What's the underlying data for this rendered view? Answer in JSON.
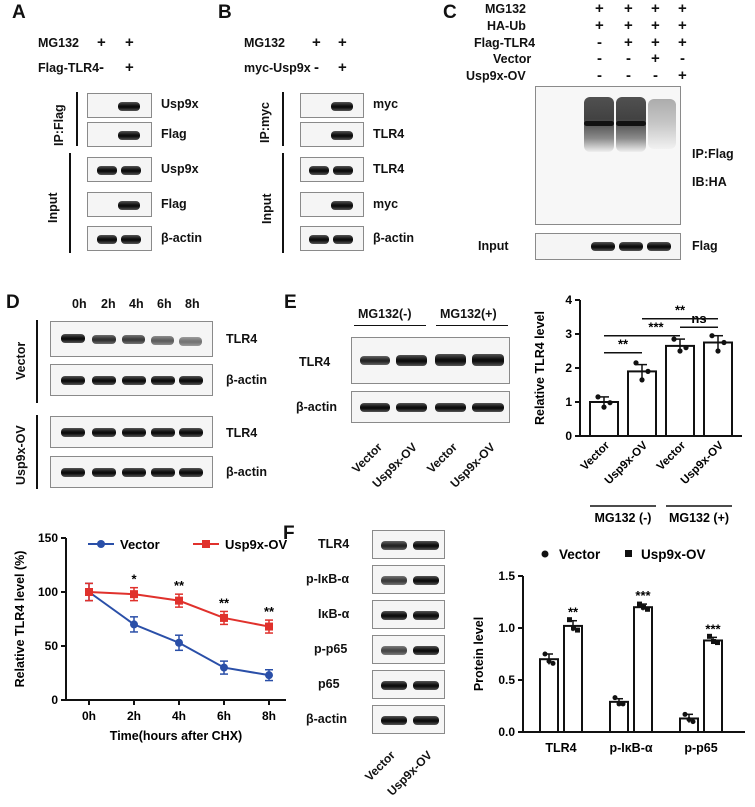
{
  "panel_labels": {
    "A": "A",
    "B": "B",
    "C": "C",
    "D": "D",
    "E": "E",
    "F": "F"
  },
  "panelA": {
    "treatments": [
      {
        "label": "MG132",
        "signs": [
          "+",
          "+"
        ]
      },
      {
        "label": "Flag-TLR4",
        "signs": [
          "-",
          "+"
        ]
      }
    ],
    "ip_label": "IP:Flag",
    "input_label": "Input",
    "blots": [
      "Usp9x",
      "Flag",
      "Usp9x",
      "Flag",
      "β-actin"
    ]
  },
  "panelB": {
    "treatments": [
      {
        "label": "MG132",
        "signs": [
          "+",
          "+"
        ]
      },
      {
        "label": "myc-Usp9x",
        "signs": [
          "-",
          "+"
        ]
      }
    ],
    "ip_label": "IP:myc",
    "input_label": "Input",
    "blots": [
      "myc",
      "TLR4",
      "TLR4",
      "myc",
      "β-actin"
    ]
  },
  "panelC": {
    "treatments": [
      {
        "label": "MG132",
        "signs": [
          "+",
          "+",
          "+",
          "+"
        ]
      },
      {
        "label": "HA-Ub",
        "signs": [
          "+",
          "+",
          "+",
          "+"
        ]
      },
      {
        "label": "Flag-TLR4",
        "signs": [
          "-",
          "+",
          "+",
          "+"
        ]
      },
      {
        "label": "Vector",
        "signs": [
          "-",
          "-",
          "+",
          "-"
        ]
      },
      {
        "label": "Usp9x-OV",
        "signs": [
          "-",
          "-",
          "-",
          "+"
        ]
      }
    ],
    "ip_label": "IP:Flag",
    "ib_label": "IB:HA",
    "input_label": "Input",
    "input_blot": "Flag"
  },
  "panelD": {
    "times": [
      "0h",
      "2h",
      "4h",
      "6h",
      "8h"
    ],
    "groups": [
      "Vector",
      "Usp9x-OV"
    ],
    "blots": [
      "TLR4",
      "β-actin"
    ]
  },
  "panelE": {
    "headers": [
      "MG132(-)",
      "MG132(+)"
    ],
    "blots": [
      "TLR4",
      "β-actin"
    ],
    "lanes": [
      "Vector",
      "Usp9x-OV",
      "Vector",
      "Usp9x-OV"
    ]
  },
  "panelF": {
    "blots": [
      "TLR4",
      "p-IκB-α",
      "IκB-α",
      "p-p65",
      "p65",
      "β-actin"
    ],
    "lanes": [
      "Vector",
      "Usp9x-OV"
    ]
  },
  "chart_data": [
    {
      "id": "panel-D-line",
      "type": "line",
      "x": [
        "0h",
        "2h",
        "4h",
        "6h",
        "8h"
      ],
      "series": [
        {
          "name": "Vector",
          "values": [
            100,
            70,
            53,
            30,
            23
          ],
          "errors": [
            8,
            7,
            7,
            6,
            5
          ],
          "color": "#2a4fa8"
        },
        {
          "name": "Usp9x-OV",
          "values": [
            100,
            98,
            92,
            76,
            68
          ],
          "errors": [
            8,
            6,
            6,
            6,
            6
          ],
          "color": "#e0312c"
        }
      ],
      "significance": [
        "",
        "*",
        "**",
        "**",
        "**"
      ],
      "xlabel": "Time(hours after CHX)",
      "ylabel": "Relative TLR4 level (%)",
      "ylim": [
        0,
        150
      ],
      "yticks": [
        0,
        50,
        100,
        150
      ],
      "legend_position": "top-right"
    },
    {
      "id": "panel-E-bar",
      "type": "bar",
      "categories": [
        "Vector",
        "Usp9x-OV",
        "Vector",
        "Usp9x-OV"
      ],
      "values": [
        1.0,
        1.9,
        2.65,
        2.75
      ],
      "errors": [
        0.15,
        0.2,
        0.2,
        0.2
      ],
      "points": [
        [
          1.15,
          0.85,
          0.98
        ],
        [
          2.15,
          1.65,
          1.9
        ],
        [
          2.85,
          2.5,
          2.6
        ],
        [
          2.95,
          2.5,
          2.75
        ]
      ],
      "groups": [
        "MG132 (-)",
        "MG132 (+)"
      ],
      "ylabel": "Relative TLR4 level",
      "ylim": [
        0,
        4
      ],
      "yticks": [
        0,
        1,
        2,
        3,
        4
      ],
      "comparisons": [
        {
          "from": 0,
          "to": 1,
          "label": "**"
        },
        {
          "from": 0,
          "to": 2,
          "label": "***"
        },
        {
          "from": 2,
          "to": 3,
          "label": "ns"
        },
        {
          "from": 1,
          "to": 3,
          "label": "**"
        }
      ]
    },
    {
      "id": "panel-F-bar",
      "type": "bar",
      "categories": [
        "TLR4",
        "p-IκB-α",
        "p-p65"
      ],
      "series": [
        {
          "name": "Vector",
          "values": [
            0.7,
            0.29,
            0.13
          ],
          "errors": [
            0.05,
            0.03,
            0.04
          ],
          "points": [
            [
              0.75,
              0.68,
              0.66
            ],
            [
              0.33,
              0.27,
              0.27
            ],
            [
              0.17,
              0.12,
              0.1
            ]
          ]
        },
        {
          "name": "Usp9x-OV",
          "values": [
            1.02,
            1.2,
            0.88
          ],
          "errors": [
            0.05,
            0.03,
            0.03
          ],
          "points": [
            [
              1.08,
              1.0,
              0.98
            ],
            [
              1.23,
              1.2,
              1.18
            ],
            [
              0.92,
              0.87,
              0.86
            ]
          ]
        }
      ],
      "significance": [
        "**",
        "***",
        "***"
      ],
      "ylabel": "Protein level",
      "ylim": [
        0,
        1.5
      ],
      "yticks": [
        0,
        0.5,
        1.0,
        1.5
      ],
      "yticklabels": [
        "0.0",
        "0.5",
        "1.0",
        "1.5"
      ],
      "legend_position": "top"
    }
  ]
}
